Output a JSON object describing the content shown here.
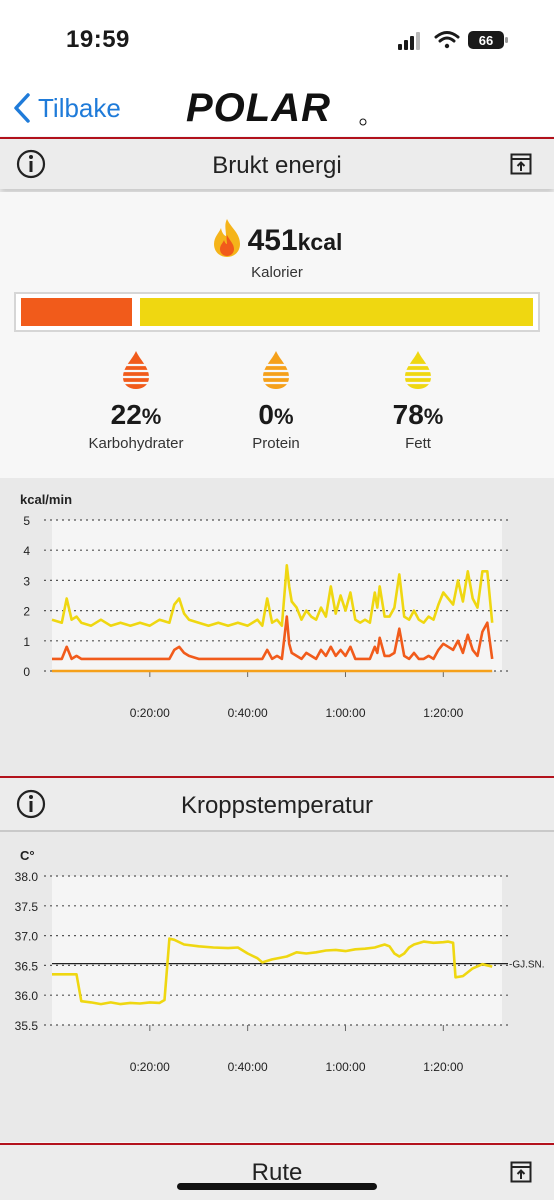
{
  "status_bar": {
    "time": "19:59",
    "battery": "66"
  },
  "nav": {
    "back_label": "Tilbake",
    "logo_text": "POLAR"
  },
  "energy": {
    "title": "Brukt energi",
    "kcal_value": "451",
    "kcal_unit": "kcal",
    "kcal_label": "Kalorier",
    "bar": {
      "carbs_fraction": 0.22,
      "fat_fraction": 0.78
    },
    "macros": [
      {
        "percent": "22",
        "symbol": "%",
        "label": "Karbohydrater",
        "color": "#f15b1b"
      },
      {
        "percent": "0",
        "symbol": "%",
        "label": "Protein",
        "color": "#f5a01a"
      },
      {
        "percent": "78",
        "symbol": "%",
        "label": "Fett",
        "color": "#efd711"
      }
    ]
  },
  "temperature": {
    "title": "Kroppstemperatur"
  },
  "route": {
    "title": "Rute"
  },
  "colors": {
    "accent_red": "#b3121c",
    "carbs": "#f15b1b",
    "protein": "#f5a01a",
    "fat": "#efd711",
    "link_blue": "#1f7bd9"
  },
  "chart_data": [
    {
      "type": "line",
      "ylabel": "kcal/min",
      "ylim": [
        0,
        5
      ],
      "yticks": [
        "0",
        "1",
        "2",
        "3",
        "4",
        "5"
      ],
      "xlim": [
        0,
        92
      ],
      "x_unit": "minutes",
      "xticks": [
        20,
        40,
        60,
        80
      ],
      "xtick_labels": [
        "0:20:00",
        "0:40:00",
        "1:00:00",
        "1:20:00"
      ],
      "grid": "dotted-horizontal",
      "series": [
        {
          "color": "#efd711",
          "x": [
            0,
            2,
            3,
            4,
            5,
            6,
            8,
            10,
            12,
            14,
            16,
            18,
            20,
            22,
            24,
            25,
            26,
            27,
            28,
            30,
            32,
            34,
            36,
            38,
            40,
            42,
            43,
            44,
            45,
            46,
            47,
            48,
            48.5,
            49,
            50,
            51,
            52,
            53,
            54,
            55,
            56,
            57,
            58,
            59,
            60,
            61,
            62,
            63,
            64,
            65,
            66,
            66.5,
            67,
            68,
            69,
            70,
            71,
            72,
            73,
            74,
            75,
            76,
            77,
            78,
            79,
            80,
            81,
            82,
            83,
            84,
            85,
            86,
            87,
            88,
            89,
            90
          ],
          "y": [
            1.7,
            1.6,
            2.4,
            1.7,
            1.8,
            1.6,
            1.5,
            1.7,
            1.5,
            1.6,
            1.5,
            1.6,
            1.5,
            1.7,
            1.6,
            2.2,
            2.4,
            1.9,
            1.7,
            1.6,
            1.5,
            1.6,
            1.5,
            1.6,
            1.5,
            1.7,
            1.5,
            2.4,
            1.6,
            1.7,
            1.5,
            3.5,
            2.8,
            2.3,
            2.1,
            1.7,
            2.0,
            1.8,
            1.7,
            2.1,
            1.8,
            2.8,
            1.9,
            2.5,
            2.0,
            2.6,
            1.7,
            1.6,
            1.7,
            1.6,
            2.6,
            2.1,
            2.8,
            1.8,
            1.8,
            2.1,
            3.2,
            1.8,
            1.7,
            2.0,
            1.7,
            1.6,
            1.8,
            1.7,
            2.2,
            2.6,
            2.4,
            2.2,
            3.0,
            2.3,
            3.3,
            2.4,
            2.1,
            3.3,
            3.3,
            1.6
          ]
        },
        {
          "color": "#f15b1b",
          "x": [
            0,
            2,
            3,
            4,
            5,
            6,
            8,
            10,
            12,
            14,
            16,
            18,
            20,
            22,
            24,
            25,
            26,
            27,
            28,
            30,
            32,
            34,
            36,
            38,
            40,
            42,
            43,
            44,
            45,
            46,
            47,
            48,
            48.5,
            49,
            50,
            51,
            52,
            53,
            54,
            55,
            56,
            57,
            58,
            59,
            60,
            61,
            62,
            63,
            64,
            65,
            66,
            66.5,
            67,
            68,
            69,
            70,
            71,
            72,
            73,
            74,
            75,
            76,
            77,
            78,
            79,
            80,
            81,
            82,
            83,
            84,
            85,
            86,
            87,
            88,
            89,
            90
          ],
          "y": [
            0.4,
            0.4,
            0.8,
            0.4,
            0.5,
            0.4,
            0.4,
            0.4,
            0.4,
            0.4,
            0.4,
            0.4,
            0.4,
            0.4,
            0.4,
            0.7,
            0.8,
            0.6,
            0.5,
            0.4,
            0.4,
            0.4,
            0.4,
            0.4,
            0.4,
            0.4,
            0.4,
            0.7,
            0.4,
            0.5,
            0.4,
            1.8,
            0.9,
            0.6,
            0.5,
            0.4,
            0.6,
            0.5,
            0.4,
            0.7,
            0.5,
            0.8,
            0.5,
            0.7,
            0.5,
            0.8,
            0.4,
            0.4,
            0.4,
            0.4,
            0.8,
            0.6,
            1.1,
            0.5,
            0.5,
            0.6,
            1.4,
            0.5,
            0.4,
            0.6,
            0.4,
            0.4,
            0.5,
            0.4,
            0.7,
            0.9,
            0.8,
            0.7,
            1.0,
            0.6,
            1.2,
            0.7,
            0.5,
            1.3,
            1.6,
            0.4
          ]
        },
        {
          "color": "#f5a01a",
          "x": [
            0,
            90
          ],
          "y": [
            0,
            0
          ]
        }
      ]
    },
    {
      "type": "line",
      "ylabel": "C°",
      "ylim": [
        35.5,
        38.0
      ],
      "yticks": [
        "35.5",
        "36.0",
        "36.5",
        "37.0",
        "37.5",
        "38.0"
      ],
      "xlim": [
        0,
        92
      ],
      "x_unit": "minutes",
      "xticks": [
        20,
        40,
        60,
        80
      ],
      "xtick_labels": [
        "0:20:00",
        "0:40:00",
        "1:00:00",
        "1:20:00"
      ],
      "grid": "dotted-horizontal",
      "reference_line": {
        "value": 36.53,
        "label": "GJ.SN."
      },
      "series": [
        {
          "color": "#efd711",
          "x": [
            0,
            5,
            6,
            8,
            10,
            12,
            14,
            16,
            18,
            20,
            22,
            23,
            24,
            25,
            27,
            30,
            33,
            36,
            38,
            40,
            42,
            43,
            45,
            48,
            50,
            52,
            54,
            56,
            58,
            60,
            62,
            64,
            66,
            68,
            69,
            70,
            71,
            72,
            73,
            74,
            76,
            78,
            80,
            81,
            82,
            82.5,
            84,
            86,
            88,
            90
          ],
          "y": [
            36.35,
            36.35,
            35.9,
            35.88,
            35.85,
            35.88,
            35.85,
            35.87,
            35.86,
            35.88,
            35.87,
            35.92,
            36.95,
            36.93,
            36.85,
            36.82,
            36.8,
            36.79,
            36.8,
            36.7,
            36.62,
            36.55,
            36.6,
            36.65,
            36.72,
            36.7,
            36.72,
            36.75,
            36.76,
            36.74,
            36.77,
            36.78,
            36.8,
            36.85,
            36.82,
            36.7,
            36.65,
            36.7,
            36.8,
            36.85,
            36.9,
            36.88,
            36.89,
            36.9,
            36.88,
            36.3,
            36.32,
            36.45,
            36.52,
            36.48
          ]
        }
      ]
    }
  ]
}
